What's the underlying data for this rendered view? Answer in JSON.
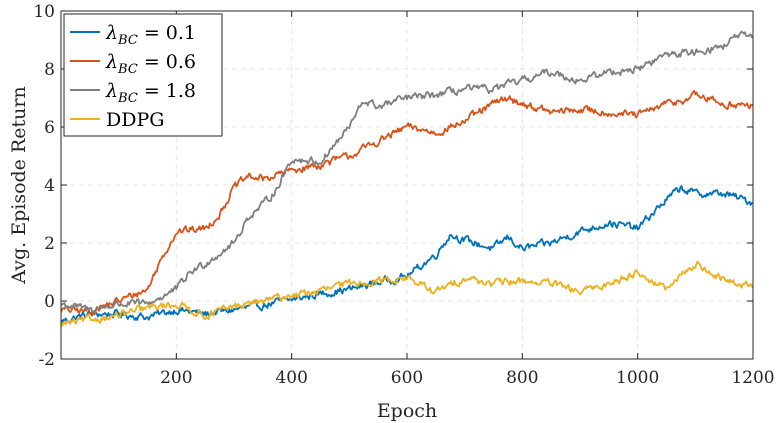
{
  "chart_data": {
    "type": "line",
    "title": "",
    "xlabel": "Epoch",
    "ylabel": "Avg. Episode Return",
    "xlim": [
      0,
      1200
    ],
    "ylim": [
      -2,
      10
    ],
    "xticks": [
      200,
      400,
      600,
      800,
      1000,
      1200
    ],
    "yticks": [
      -2,
      0,
      2,
      4,
      6,
      8,
      10
    ],
    "grid": true,
    "legend_position": "top-left",
    "series": [
      {
        "name": "λ_BC = 0.1",
        "legend": {
          "sym": "λ",
          "sub": "BC",
          "rest": " = 0.1"
        },
        "color": "#0072BD",
        "x": [
          0,
          50,
          100,
          150,
          200,
          250,
          300,
          350,
          400,
          450,
          500,
          550,
          600,
          650,
          675,
          700,
          750,
          775,
          800,
          850,
          900,
          950,
          1000,
          1050,
          1075,
          1100,
          1150,
          1200
        ],
        "y": [
          -0.7,
          -0.45,
          -0.45,
          -0.55,
          -0.3,
          -0.45,
          -0.3,
          -0.15,
          0.05,
          0.25,
          0.4,
          0.65,
          0.85,
          1.6,
          2.3,
          2.1,
          1.8,
          2.2,
          1.8,
          2.0,
          2.4,
          2.7,
          2.5,
          3.5,
          3.9,
          3.7,
          3.7,
          3.4
        ]
      },
      {
        "name": "λ_BC = 0.6",
        "legend": {
          "sym": "λ",
          "sub": "BC",
          "rest": " = 0.6"
        },
        "color": "#D95319",
        "x": [
          0,
          50,
          100,
          150,
          175,
          200,
          250,
          275,
          300,
          325,
          350,
          400,
          450,
          500,
          550,
          600,
          650,
          700,
          750,
          775,
          800,
          850,
          900,
          950,
          1000,
          1050,
          1075,
          1100,
          1150,
          1200
        ],
        "y": [
          -0.3,
          -0.35,
          0.0,
          0.4,
          1.5,
          2.4,
          2.5,
          3.0,
          3.9,
          4.3,
          4.2,
          4.5,
          4.7,
          5.0,
          5.5,
          6.0,
          5.8,
          6.2,
          6.8,
          7.0,
          6.8,
          6.5,
          6.6,
          6.5,
          6.4,
          6.8,
          6.9,
          7.1,
          6.8,
          6.7
        ]
      },
      {
        "name": "λ_BC = 1.8",
        "legend": {
          "sym": "λ",
          "sub": "BC",
          "rest": " = 1.8"
        },
        "color": "#7F7F7F",
        "x": [
          0,
          50,
          100,
          150,
          200,
          225,
          250,
          300,
          325,
          350,
          375,
          400,
          450,
          500,
          525,
          550,
          600,
          650,
          700,
          750,
          800,
          850,
          900,
          950,
          1000,
          1050,
          1100,
          1150,
          1175,
          1200
        ],
        "y": [
          -0.1,
          -0.3,
          -0.1,
          -0.1,
          0.4,
          1.0,
          1.3,
          2.0,
          2.9,
          3.3,
          3.9,
          4.9,
          4.8,
          6.0,
          6.9,
          6.7,
          7.0,
          7.1,
          7.3,
          7.3,
          7.6,
          7.9,
          7.6,
          7.9,
          8.0,
          8.5,
          8.6,
          8.8,
          9.2,
          9.0
        ]
      },
      {
        "name": "DDPG",
        "legend": {
          "sym": "",
          "sub": "",
          "rest": "DDPG"
        },
        "color": "#EDB120",
        "x": [
          0,
          50,
          100,
          150,
          200,
          250,
          300,
          350,
          400,
          450,
          500,
          550,
          600,
          650,
          700,
          750,
          800,
          850,
          900,
          950,
          1000,
          1050,
          1100,
          1150,
          1200
        ],
        "y": [
          -0.8,
          -0.65,
          -0.5,
          -0.25,
          -0.1,
          -0.5,
          -0.2,
          0.0,
          0.2,
          0.35,
          0.6,
          0.7,
          0.8,
          0.3,
          0.8,
          0.6,
          0.7,
          0.6,
          0.3,
          0.6,
          1.0,
          0.4,
          1.3,
          0.7,
          0.5
        ]
      }
    ]
  }
}
